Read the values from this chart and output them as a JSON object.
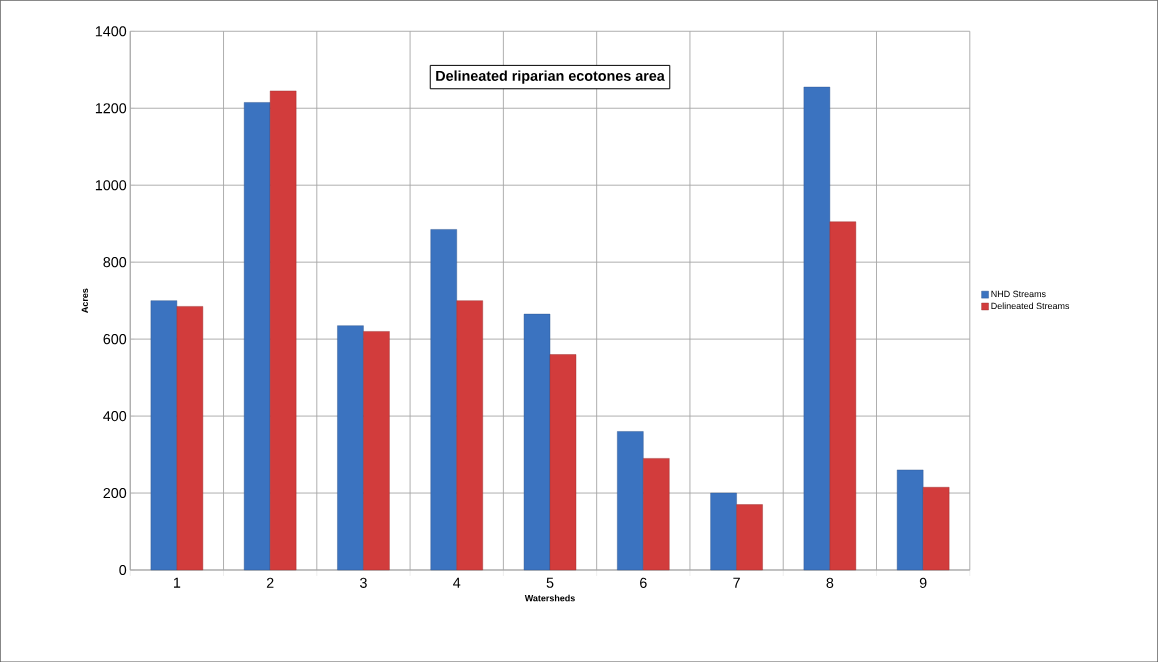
{
  "chart_data": {
    "type": "bar",
    "title": "Delineated riparian ecotones area",
    "xlabel": "Watersheds",
    "ylabel": "Acres",
    "categories": [
      "1",
      "2",
      "3",
      "4",
      "5",
      "6",
      "7",
      "8",
      "9"
    ],
    "series": [
      {
        "name": "NHD Streams",
        "color": "#3b73c0",
        "values": [
          700,
          1215,
          635,
          885,
          665,
          360,
          200,
          1255,
          260
        ]
      },
      {
        "name": "Delineated Streams",
        "color": "#d23c3c",
        "values": [
          685,
          1245,
          620,
          700,
          560,
          290,
          170,
          905,
          215
        ]
      }
    ],
    "ylim": [
      0,
      1400
    ],
    "yticks": [
      0,
      200,
      400,
      600,
      800,
      1000,
      1200,
      1400
    ],
    "grid": true,
    "legend": "right"
  }
}
